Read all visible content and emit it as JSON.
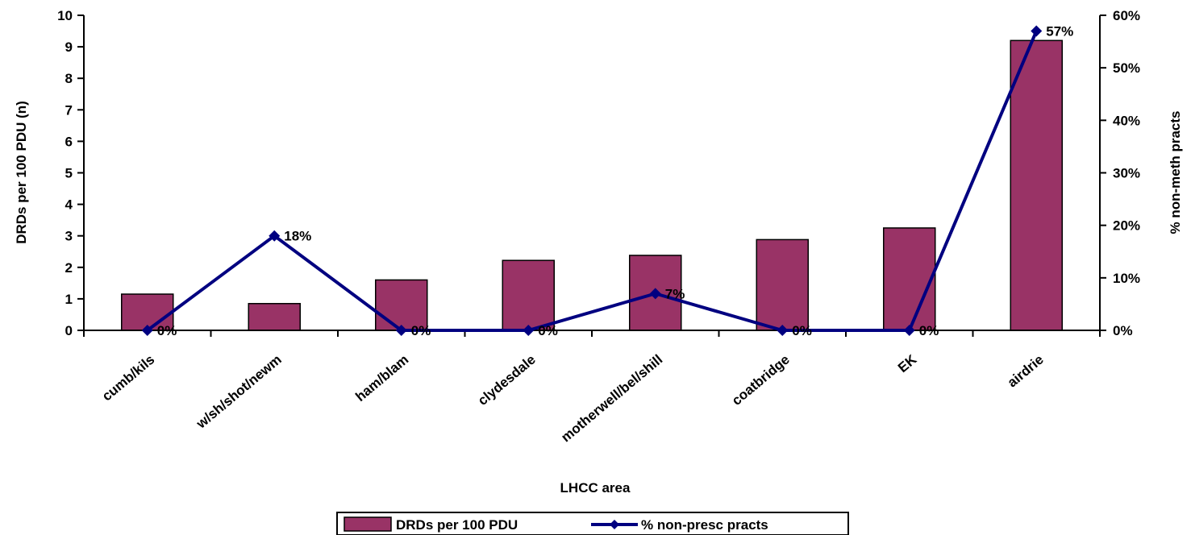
{
  "chart_data": {
    "type": "bar",
    "title": "",
    "xlabel": "LHCC area",
    "ylabel": "DRDs per 100 PDU (n)",
    "y2label": "% non-meth practs",
    "categories": [
      "cumb/kils",
      "w/sh/shot/newm",
      "ham/blam",
      "clydesdale",
      "motherwell/bel/shill",
      "coatbridge",
      "EK",
      "airdrie"
    ],
    "ylim": [
      0,
      10
    ],
    "yticks": [
      "0",
      "1",
      "2",
      "3",
      "4",
      "5",
      "6",
      "7",
      "8",
      "9",
      "10"
    ],
    "y2lim": [
      0,
      60
    ],
    "y2ticks": [
      "0%",
      "10%",
      "20%",
      "30%",
      "40%",
      "50%",
      "60%"
    ],
    "series": [
      {
        "name": "DRDs per 100 PDU",
        "type": "bar",
        "axis": "left",
        "values": [
          1.15,
          0.85,
          1.6,
          2.22,
          2.38,
          2.88,
          3.25,
          9.2
        ],
        "color": "#993366"
      },
      {
        "name": "% non-presc practs",
        "type": "line",
        "axis": "right",
        "values": [
          0,
          18,
          0,
          0,
          7,
          0,
          0,
          57
        ],
        "labels": [
          "0%",
          "18%",
          "0%",
          "0%",
          "7%",
          "0%",
          "0%",
          "57%"
        ],
        "color": "#000080"
      }
    ],
    "grid": false,
    "legend": "bottom"
  }
}
